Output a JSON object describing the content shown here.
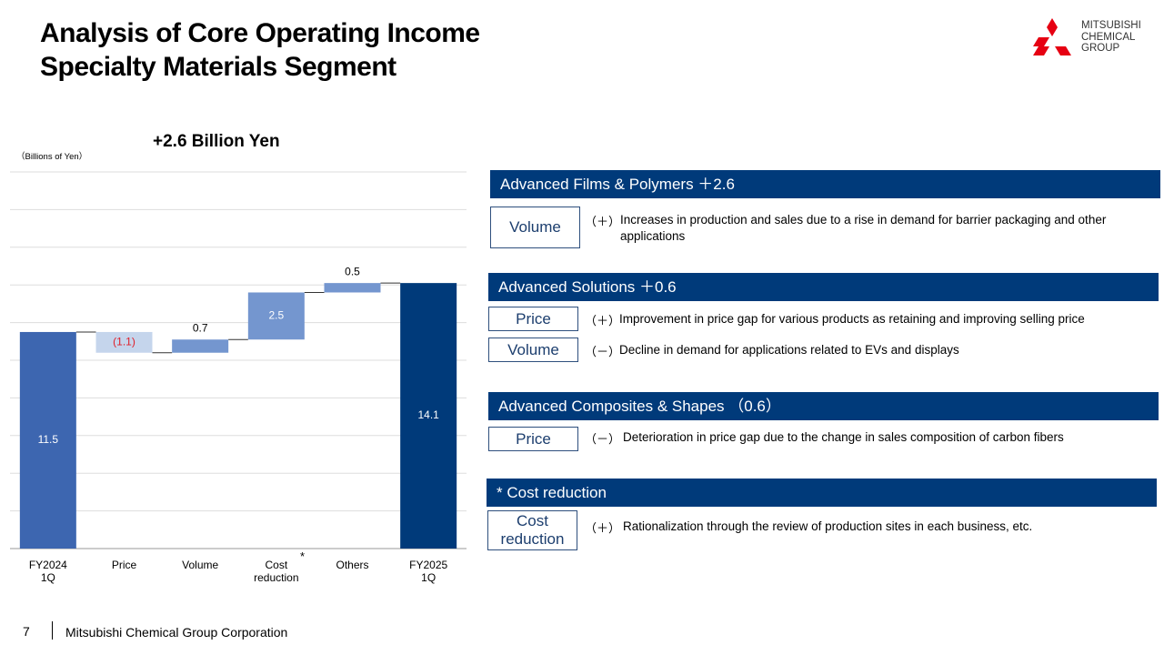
{
  "header": {
    "title_lines": [
      "Analysis of Core Operating Income",
      "Specialty Materials Segment"
    ]
  },
  "logo": {
    "lines": [
      "MITSUBISHI",
      "CHEMICAL",
      "GROUP"
    ]
  },
  "chart_data": {
    "type": "waterfall",
    "title": "+2.6 Billion Yen",
    "unit_label": "（Billions of Yen）",
    "categories": [
      "FY2024 1Q",
      "Price",
      "Volume",
      "Cost reduction",
      "Others",
      "FY2025 1Q"
    ],
    "values": [
      11.5,
      -1.1,
      0.7,
      2.5,
      0.5,
      14.1
    ],
    "value_labels": [
      "11.5",
      "(1.1)",
      "0.7",
      "2.5",
      "0.5",
      "14.1"
    ],
    "measure": [
      "total",
      "relative",
      "relative",
      "relative",
      "relative",
      "total"
    ],
    "colors": [
      "#3d66b0",
      "#c5d5ec",
      "#7496cf",
      "#7496cf",
      "#7496cf",
      "#003a7a"
    ],
    "negative_label_color": "#e0202a",
    "annotation": "*",
    "ylim": [
      0,
      20
    ],
    "yticks": [
      0,
      2,
      4,
      6,
      8,
      10,
      12,
      14,
      16,
      18,
      20
    ],
    "grid": true
  },
  "sections": [
    {
      "title": "Advanced Films & Polymers ＋2.6",
      "items": [
        {
          "tag": "Volume",
          "sign": "（＋）",
          "text": "Increases in production and sales due to a rise in demand for barrier packaging and other applications"
        }
      ]
    },
    {
      "title": "Advanced Solutions ＋0.6",
      "items": [
        {
          "tag": "Price",
          "sign": "（＋）",
          "text": "Improvement in price gap for various products as retaining and improving selling price"
        },
        {
          "tag": "Volume",
          "sign": "（－）",
          "text": "Decline in demand for applications related to EVs and displays"
        }
      ]
    },
    {
      "title": "Advanced Composites & Shapes （0.6）",
      "items": [
        {
          "tag": "Price",
          "sign": "（－）",
          "text": "Deterioration in price gap due to the change in sales composition of carbon fibers"
        }
      ]
    },
    {
      "title": "* Cost reduction",
      "items": [
        {
          "tag": "Cost reduction",
          "sign": "（＋）",
          "text": "Rationalization through the review of production sites in each business, etc."
        }
      ]
    }
  ],
  "footer": {
    "page": "7",
    "company": "Mitsubishi Chemical Group Corporation"
  }
}
